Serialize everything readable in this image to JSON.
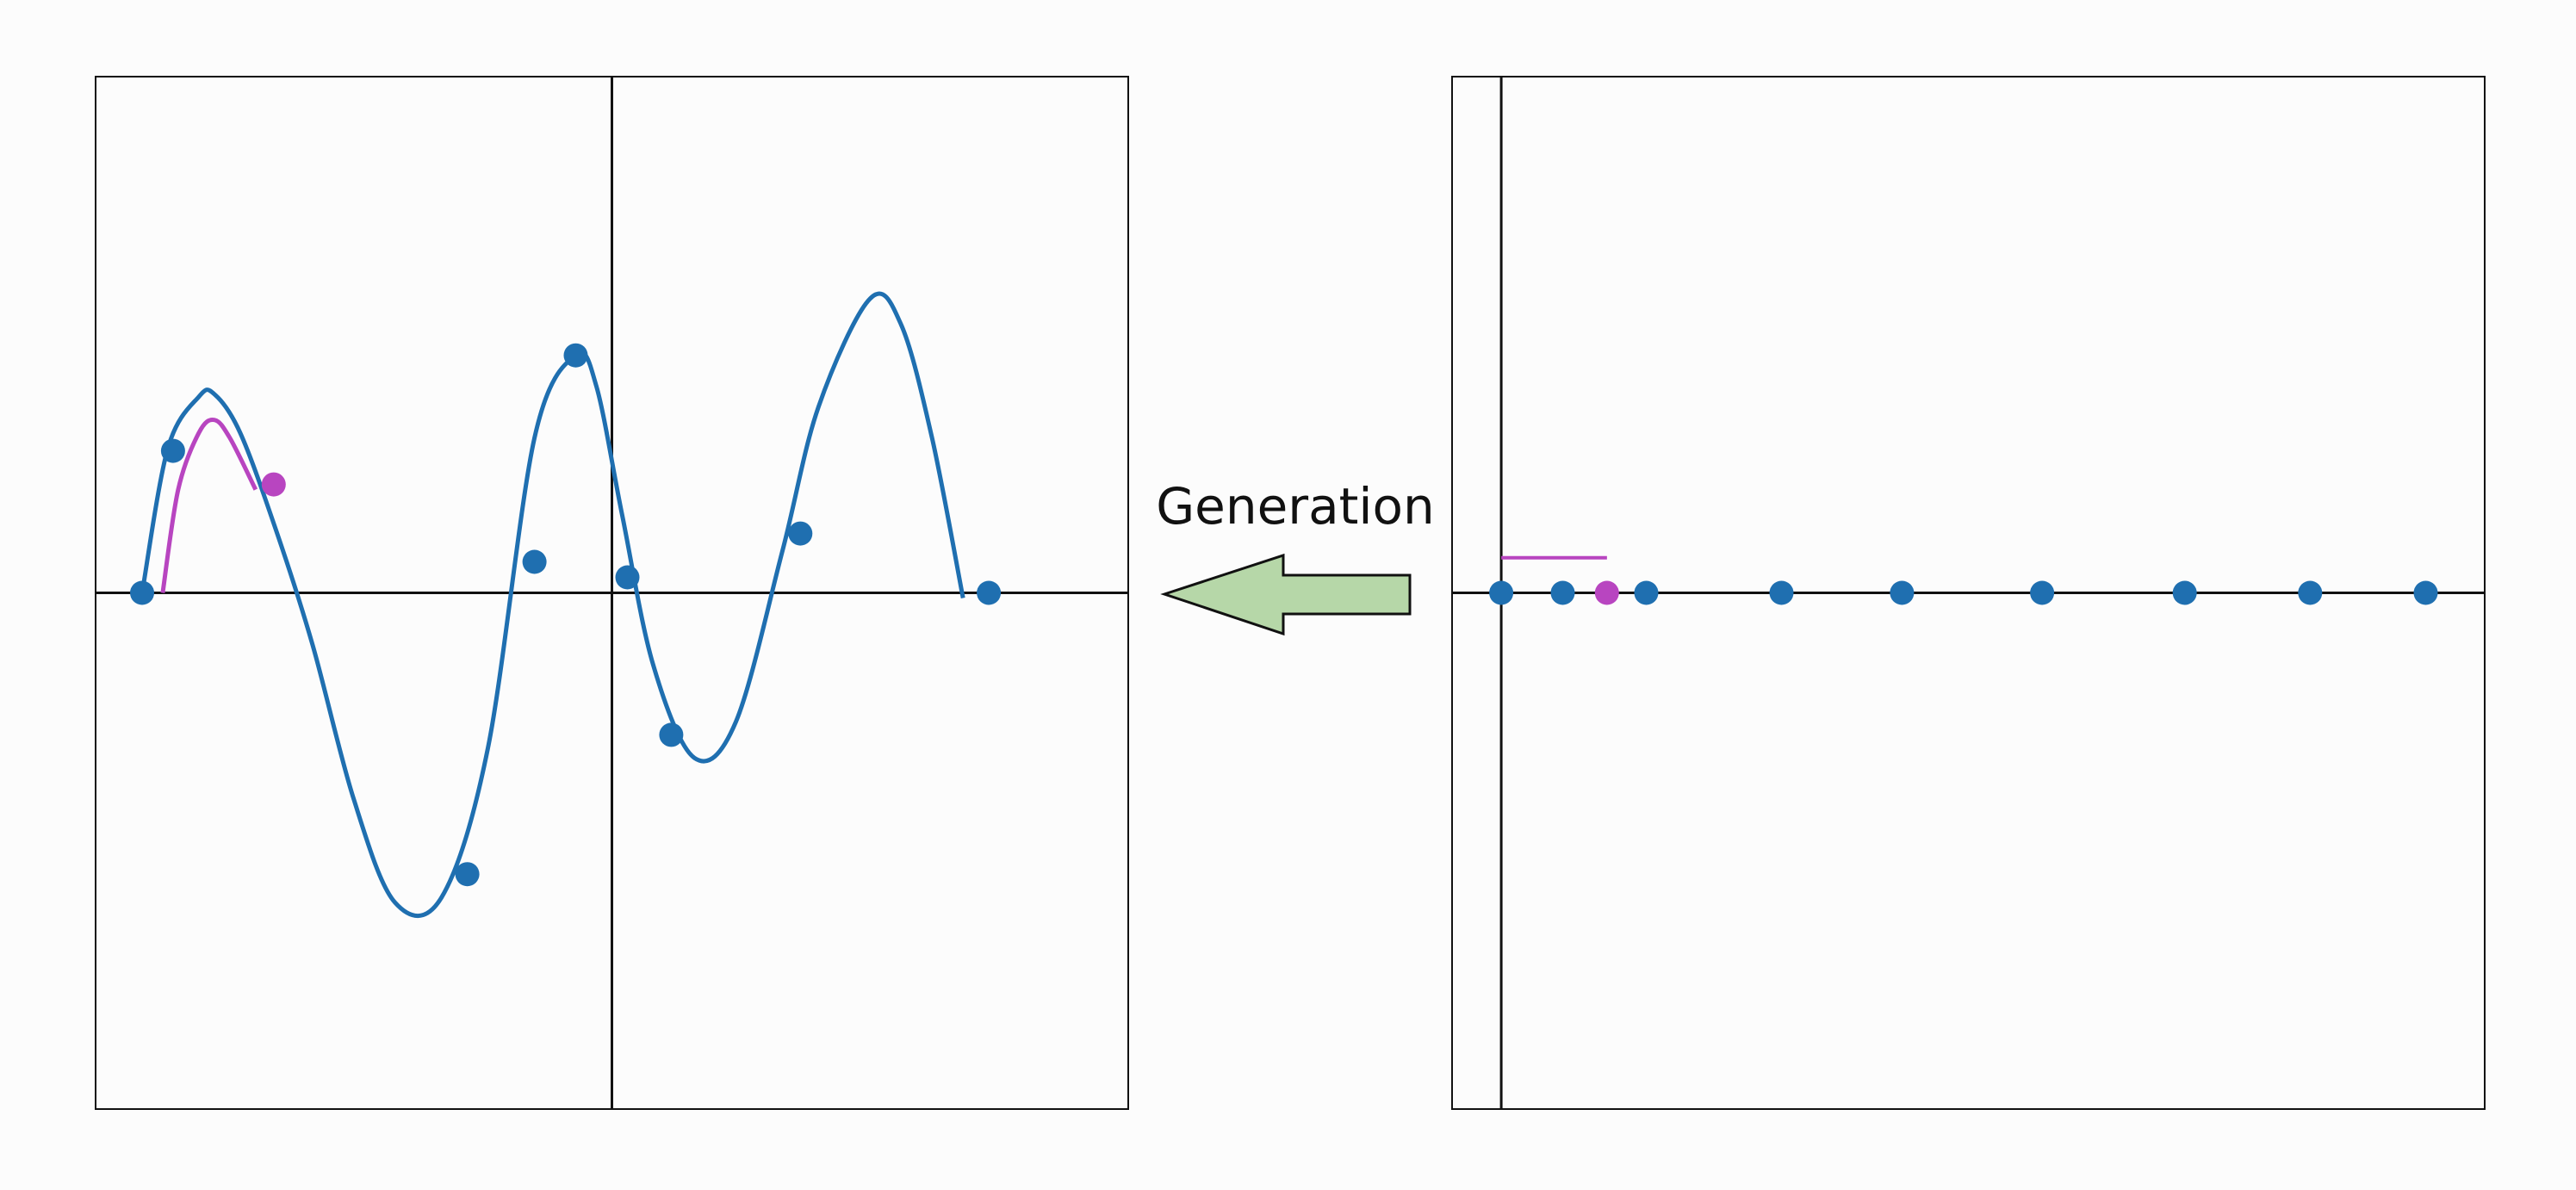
{
  "colors": {
    "background": "#fcfcfc",
    "frame": "#111111",
    "axis": "#111111",
    "curve": "#1f6fb0",
    "point": "#1f6fb0",
    "highlight": "#b845c0",
    "arrow_fill": "#b6d7a8",
    "arrow_stroke": "#111111"
  },
  "arrow": {
    "label": "Generation",
    "direction": "left"
  },
  "left_panel": {
    "name": "generated-curve-plot",
    "xlim": [
      -1.0,
      1.0
    ],
    "ylim": [
      -1.0,
      1.0
    ],
    "x_axis_at": 0.0,
    "y_axis_at": 0.0,
    "curve_knots": [
      [
        -0.91,
        0.0
      ],
      [
        -0.86,
        0.28
      ],
      [
        -0.8,
        0.38
      ],
      [
        -0.77,
        0.385
      ],
      [
        -0.72,
        0.31
      ],
      [
        -0.65,
        0.12
      ],
      [
        -0.58,
        -0.1
      ],
      [
        -0.5,
        -0.4
      ],
      [
        -0.42,
        -0.6
      ],
      [
        -0.33,
        -0.59
      ],
      [
        -0.24,
        -0.3
      ],
      [
        -0.15,
        0.3
      ],
      [
        -0.07,
        0.46
      ],
      [
        -0.03,
        0.4
      ],
      [
        0.02,
        0.15
      ],
      [
        0.08,
        -0.14
      ],
      [
        0.16,
        -0.32
      ],
      [
        0.24,
        -0.25
      ],
      [
        0.33,
        0.08
      ],
      [
        0.4,
        0.36
      ],
      [
        0.5,
        0.57
      ],
      [
        0.56,
        0.52
      ],
      [
        0.62,
        0.3
      ],
      [
        0.68,
        -0.01
      ]
    ],
    "points": [
      [
        -0.91,
        0.0
      ],
      [
        -0.85,
        0.275
      ],
      [
        -0.28,
        -0.545
      ],
      [
        -0.15,
        0.06
      ],
      [
        -0.07,
        0.46
      ],
      [
        0.03,
        0.03
      ],
      [
        0.115,
        -0.275
      ],
      [
        0.365,
        0.115
      ],
      [
        0.73,
        0.0
      ]
    ],
    "highlight_curve_knots": [
      [
        -0.87,
        0.0
      ],
      [
        -0.84,
        0.2
      ],
      [
        -0.8,
        0.31
      ],
      [
        -0.77,
        0.335
      ],
      [
        -0.74,
        0.3
      ],
      [
        -0.69,
        0.2
      ]
    ],
    "highlight_point": [
      -0.655,
      0.21
    ]
  },
  "right_panel": {
    "name": "latent-points-plot",
    "xlim": [
      -0.1,
      2.0
    ],
    "ylim": [
      -1.0,
      1.0
    ],
    "x_axis_at": 0.0,
    "y_axis_at": 0.0,
    "points_x": [
      0.0,
      0.125,
      0.295,
      0.57,
      0.815,
      1.1,
      1.39,
      1.645,
      1.88
    ],
    "highlight_point_x": 0.215,
    "highlight_segment": [
      0.0,
      0.215
    ],
    "highlight_segment_y": 0.068
  }
}
